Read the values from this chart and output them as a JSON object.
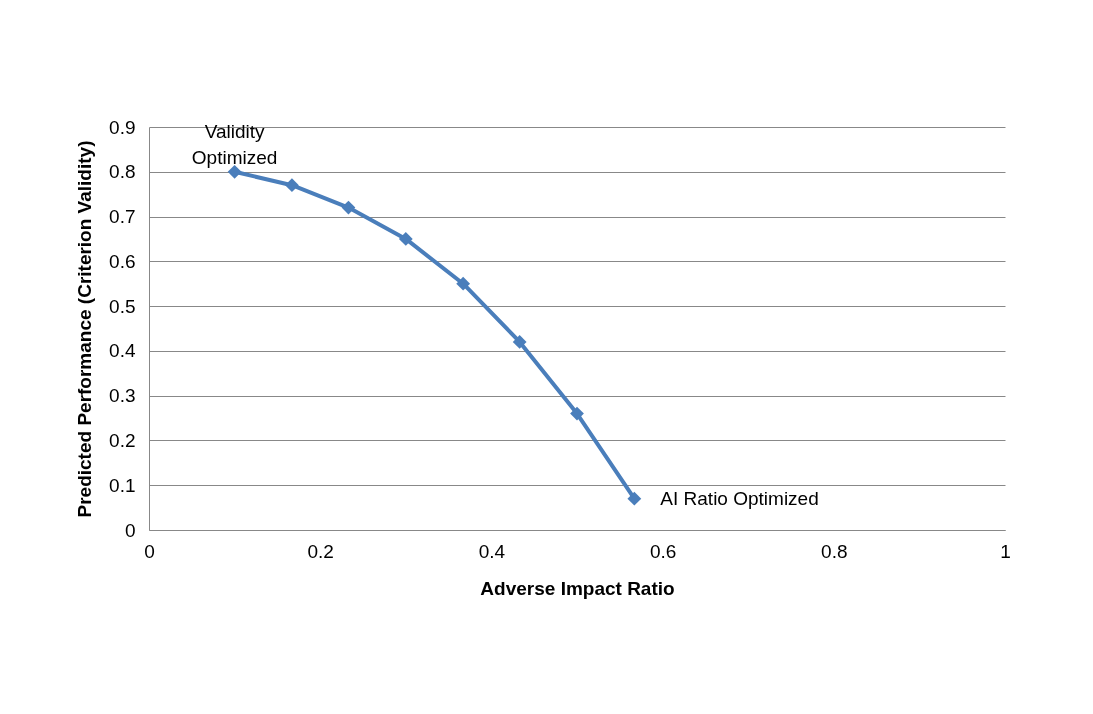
{
  "chart_data": {
    "type": "line",
    "xlabel": "Adverse Impact Ratio",
    "ylabel": "Predicted Performance (Criterion Validity)",
    "x": [
      0.1,
      0.167,
      0.233,
      0.3,
      0.367,
      0.433,
      0.5,
      0.567
    ],
    "series": [
      {
        "color": "#4a7ebb",
        "values": [
          0.8,
          0.77,
          0.72,
          0.65,
          0.55,
          0.42,
          0.26,
          0.07
        ]
      }
    ],
    "xlim": [
      0,
      1
    ],
    "xticks": [
      0,
      0.2,
      0.4,
      0.6,
      0.8,
      1
    ],
    "ylim": [
      0,
      0.9
    ],
    "yticks": [
      0,
      0.1,
      0.2,
      0.3,
      0.4,
      0.5,
      0.6,
      0.7,
      0.8,
      0.9
    ],
    "grid": "y",
    "marker": "diamond",
    "line_style": "solid",
    "annotations": [
      {
        "text": "Validity Optimized",
        "x": 0.1,
        "y": 0.8
      },
      {
        "text": "AI Ratio Optimized",
        "x": 0.567,
        "y": 0.07
      }
    ]
  }
}
